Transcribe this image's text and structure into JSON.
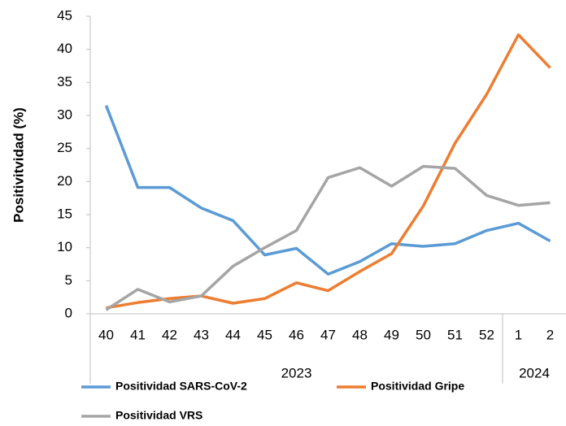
{
  "chart_data": {
    "type": "line",
    "y_label": "Positivitvidad (%)",
    "groups": [
      {
        "label": "2023",
        "categories": [
          "40",
          "41",
          "42",
          "43",
          "44",
          "45",
          "46",
          "47",
          "48",
          "49",
          "50",
          "51",
          "52"
        ]
      },
      {
        "label": "2024",
        "categories": [
          "1",
          "2"
        ]
      }
    ],
    "series": [
      {
        "name": "Positividad SARS-CoV-2",
        "color": "#5b9bd5",
        "values": [
          31.5,
          19.1,
          19.1,
          16,
          14.1,
          8.9,
          9.9,
          6,
          7.9,
          10.6,
          10.2,
          10.6,
          12.6,
          13.7,
          11
        ]
      },
      {
        "name": "Positividad Gripe",
        "color": "#ed7d31",
        "values": [
          0.9,
          1.7,
          2.3,
          2.7,
          1.6,
          2.3,
          4.7,
          3.5,
          6.4,
          9.1,
          16.3,
          25.8,
          33.2,
          42.2,
          37.2
        ]
      },
      {
        "name": "Positividad VRS",
        "color": "#a5a5a5",
        "values": [
          0.6,
          3.7,
          1.8,
          2.7,
          7.2,
          10,
          12.6,
          20.6,
          22.1,
          19.3,
          22.3,
          22,
          17.9,
          16.4,
          16.8
        ]
      }
    ],
    "ylim": [
      0,
      45
    ],
    "yticks": [
      0,
      5,
      10,
      15,
      20,
      25,
      30,
      35,
      40,
      45
    ],
    "grid": false
  }
}
